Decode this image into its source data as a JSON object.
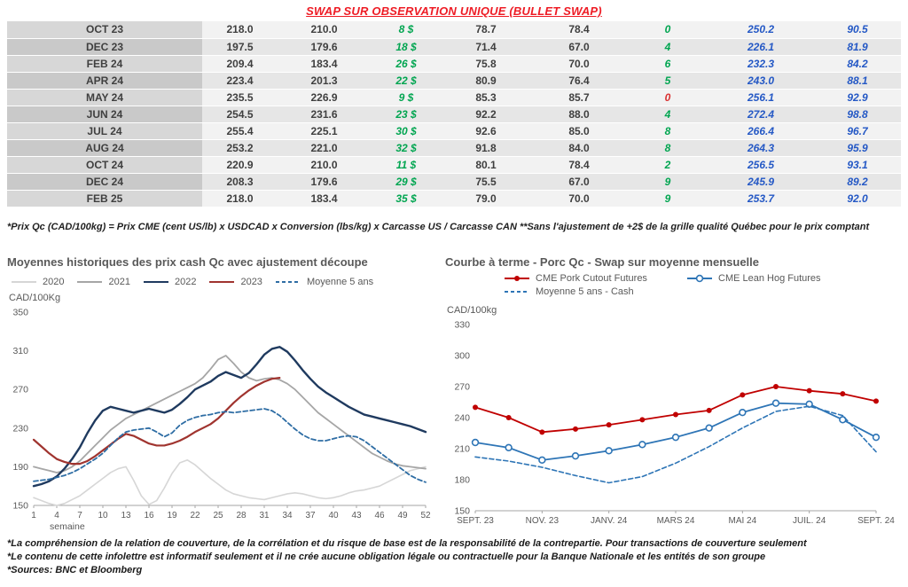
{
  "page_title": "SWAP SUR OBSERVATION UNIQUE (BULLET SWAP)",
  "table": {
    "rows": [
      {
        "month": "OCT 23",
        "values": [
          "218.0",
          "210.0",
          "8 $",
          "78.7",
          "78.4",
          "0",
          "250.2",
          "90.5"
        ],
        "diff_red": false
      },
      {
        "month": "DEC 23",
        "values": [
          "197.5",
          "179.6",
          "18 $",
          "71.4",
          "67.0",
          "4",
          "226.1",
          "81.9"
        ],
        "diff_red": false
      },
      {
        "month": "FEB 24",
        "values": [
          "209.4",
          "183.4",
          "26 $",
          "75.8",
          "70.0",
          "6",
          "232.3",
          "84.2"
        ],
        "diff_red": false
      },
      {
        "month": "APR 24",
        "values": [
          "223.4",
          "201.3",
          "22 $",
          "80.9",
          "76.4",
          "5",
          "243.0",
          "88.1"
        ],
        "diff_red": false
      },
      {
        "month": "MAY 24",
        "values": [
          "235.5",
          "226.9",
          "9 $",
          "85.3",
          "85.7",
          "0",
          "256.1",
          "92.9"
        ],
        "diff_red": true
      },
      {
        "month": "JUN 24",
        "values": [
          "254.5",
          "231.6",
          "23 $",
          "92.2",
          "88.0",
          "4",
          "272.4",
          "98.8"
        ],
        "diff_red": false
      },
      {
        "month": "JUL 24",
        "values": [
          "255.4",
          "225.1",
          "30 $",
          "92.6",
          "85.0",
          "8",
          "266.4",
          "96.7"
        ],
        "diff_red": false
      },
      {
        "month": "AUG 24",
        "values": [
          "253.2",
          "221.0",
          "32 $",
          "91.8",
          "84.0",
          "8",
          "264.3",
          "95.9"
        ],
        "diff_red": false
      },
      {
        "month": "OCT 24",
        "values": [
          "220.9",
          "210.0",
          "11 $",
          "80.1",
          "78.4",
          "2",
          "256.5",
          "93.1"
        ],
        "diff_red": false
      },
      {
        "month": "DEC 24",
        "values": [
          "208.3",
          "179.6",
          "29 $",
          "75.5",
          "67.0",
          "9",
          "245.9",
          "89.2"
        ],
        "diff_red": false
      },
      {
        "month": "FEB 25",
        "values": [
          "218.0",
          "183.4",
          "35 $",
          "79.0",
          "70.0",
          "9",
          "253.7",
          "92.0"
        ],
        "diff_red": false
      }
    ]
  },
  "table_note": "*Prix Qc (CAD/100kg) = Prix CME (cent US/lb) x USDCAD x Conversion (lbs/kg) x Carcasse US / Carcasse CAN **Sans l'ajustement de +2$ de la grille qualité Québec pour le prix comptant",
  "chart_data": [
    {
      "type": "line",
      "title": "Moyennes historiques des prix cash Qc avec ajustement découpe",
      "ylabel": "CAD/100Kg",
      "xlabel": "semaine",
      "ylim": [
        150,
        350
      ],
      "yticks": [
        150,
        190,
        230,
        270,
        310,
        350
      ],
      "xticks": [
        1,
        4,
        7,
        10,
        13,
        16,
        19,
        22,
        25,
        28,
        31,
        34,
        37,
        40,
        43,
        46,
        49,
        52
      ],
      "legend_position": "top",
      "series": [
        {
          "name": "2020",
          "color": "#d6d6d6",
          "width": 1.6,
          "values": [
            158,
            155,
            152,
            150,
            152,
            156,
            160,
            166,
            172,
            178,
            184,
            188,
            190,
            176,
            160,
            151,
            155,
            168,
            183,
            194,
            197,
            192,
            185,
            178,
            172,
            166,
            162,
            160,
            158,
            157,
            156,
            158,
            160,
            162,
            163,
            162,
            160,
            158,
            157,
            158,
            160,
            163,
            165,
            166,
            168,
            170,
            174,
            178,
            182,
            186,
            188,
            190
          ]
        },
        {
          "name": "2021",
          "color": "#a6a6a6",
          "width": 1.8,
          "values": [
            190,
            188,
            186,
            184,
            186,
            190,
            196,
            204,
            212,
            220,
            228,
            234,
            240,
            244,
            248,
            252,
            256,
            260,
            264,
            268,
            272,
            276,
            282,
            291,
            301,
            305,
            297,
            288,
            282,
            279,
            281,
            282,
            280,
            276,
            270,
            262,
            254,
            246,
            240,
            234,
            228,
            222,
            216,
            210,
            204,
            200,
            196,
            193,
            191,
            190,
            189,
            188
          ]
        },
        {
          "name": "2022",
          "color": "#1f3a5f",
          "width": 2.4,
          "values": [
            170,
            172,
            175,
            180,
            188,
            198,
            210,
            225,
            238,
            248,
            252,
            250,
            248,
            246,
            248,
            250,
            248,
            246,
            249,
            255,
            262,
            270,
            274,
            278,
            284,
            288,
            285,
            282,
            287,
            296,
            306,
            312,
            314,
            309,
            300,
            290,
            281,
            273,
            267,
            262,
            257,
            252,
            248,
            244,
            242,
            240,
            238,
            236,
            234,
            232,
            229,
            226
          ]
        },
        {
          "name": "2023",
          "color": "#a0342f",
          "width": 2.2,
          "values": [
            218,
            211,
            204,
            198,
            195,
            193,
            193,
            196,
            201,
            207,
            213,
            219,
            224,
            222,
            218,
            214,
            212,
            212,
            214,
            217,
            221,
            226,
            230,
            234,
            240,
            248,
            256,
            263,
            269,
            274,
            278,
            281,
            282
          ]
        },
        {
          "name": "Moyenne 5 ans",
          "color": "#2e6da4",
          "width": 1.8,
          "dash": true,
          "values": [
            175,
            176,
            177,
            179,
            181,
            184,
            188,
            193,
            198,
            204,
            212,
            220,
            226,
            228,
            229,
            230,
            226,
            221,
            225,
            233,
            238,
            241,
            243,
            244,
            246,
            247,
            246,
            247,
            248,
            249,
            250,
            248,
            243,
            236,
            229,
            223,
            219,
            217,
            217,
            219,
            221,
            222,
            221,
            217,
            211,
            205,
            199,
            193,
            187,
            181,
            177,
            174
          ]
        }
      ]
    },
    {
      "type": "line",
      "title": "Courbe à terme - Porc Qc - Swap sur moyenne mensuelle",
      "ylabel": "CAD/100kg",
      "ylim": [
        150,
        330
      ],
      "yticks": [
        150,
        180,
        210,
        240,
        270,
        300,
        330
      ],
      "categories": [
        "SEPT. 23",
        "OCT. 23",
        "NOV. 23",
        "DÉC. 23",
        "JANV. 24",
        "FÉVR. 24",
        "MARS 24",
        "AVR. 24",
        "MAI 24",
        "JUIN 24",
        "JUIL. 24",
        "AOÛT 24",
        "SEPT. 24"
      ],
      "xtick_labels": [
        "SEPT. 23",
        "NOV. 23",
        "JANV. 24",
        "MARS 24",
        "MAI 24",
        "JUIL. 24",
        "SEPT. 24"
      ],
      "xtick_indices": [
        0,
        2,
        4,
        6,
        8,
        10,
        12
      ],
      "legend_position": "top",
      "series": [
        {
          "name": "CME Pork Cutout Futures",
          "color": "#c00000",
          "width": 1.8,
          "marker": "dot",
          "values": [
            250,
            240,
            226,
            229,
            233,
            238,
            243,
            247,
            262,
            270,
            266,
            263,
            256
          ]
        },
        {
          "name": "CME Lean Hog Futures",
          "color": "#2e75b6",
          "width": 1.8,
          "marker": "circle",
          "values": [
            216,
            211,
            199,
            203,
            208,
            214,
            221,
            230,
            245,
            254,
            253,
            238,
            221
          ]
        },
        {
          "name": "Moyenne 5 ans - Cash",
          "color": "#2e75b6",
          "width": 1.6,
          "dash": true,
          "values": [
            202,
            198,
            192,
            184,
            177,
            183,
            196,
            212,
            230,
            246,
            251,
            242,
            207
          ]
        }
      ]
    }
  ],
  "footnotes": [
    "*La compréhension de la relation de couverture, de la corrélation et du risque de base est de la responsabilité de la contrepartie. Pour transactions de couverture seulement",
    "*Le contenu de cette infolettre est informatif seulement et il ne crée aucune obligation légale ou contractuelle pour la Banque Nationale et les entités de son groupe",
    "*Sources: BNC et Bloomberg"
  ]
}
